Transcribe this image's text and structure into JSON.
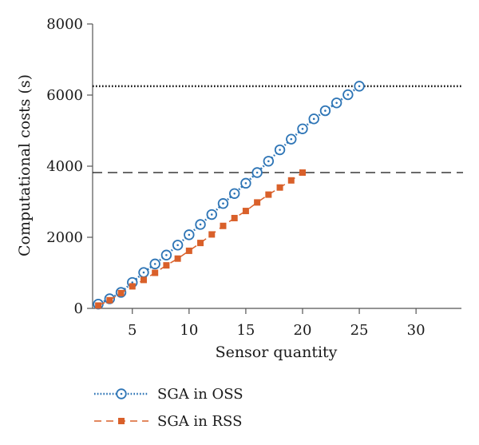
{
  "chart_data": {
    "type": "line",
    "xlabel": "Sensor quantity",
    "ylabel": "Computational costs (s)",
    "xlim": [
      1.5,
      34
    ],
    "ylim": [
      0,
      8000
    ],
    "xticks": [
      5,
      10,
      15,
      20,
      25,
      30
    ],
    "yticks": [
      0,
      2000,
      4000,
      6000,
      8000
    ],
    "x_tick_labels": [
      "5",
      "10",
      "15",
      "20",
      "25",
      "30"
    ],
    "y_tick_labels": [
      "0",
      "2000",
      "4000",
      "6000",
      "8000"
    ],
    "grid": false,
    "legend_position": "bottom-left",
    "reference_lines": [
      {
        "series": "SGA in OSS",
        "y": 6250,
        "style": "dotted"
      },
      {
        "series": "SGA in RSS",
        "y": 3820,
        "style": "dashed"
      }
    ],
    "series": [
      {
        "name": "SGA in OSS",
        "color": "#2e75b6",
        "line_style": "dotted",
        "marker": "circle-dot",
        "x": [
          2,
          3,
          4,
          5,
          6,
          7,
          8,
          9,
          10,
          11,
          12,
          13,
          14,
          15,
          16,
          17,
          18,
          19,
          20,
          21,
          22,
          23,
          24,
          25
        ],
        "values": [
          120,
          270,
          450,
          730,
          1010,
          1250,
          1500,
          1780,
          2070,
          2360,
          2640,
          2950,
          3230,
          3520,
          3820,
          4140,
          4460,
          4760,
          5050,
          5330,
          5560,
          5780,
          6010,
          6250
        ]
      },
      {
        "name": "SGA in RSS",
        "color": "#d9602a",
        "line_style": "dashed",
        "marker": "square",
        "x": [
          2,
          3,
          4,
          5,
          6,
          7,
          8,
          9,
          10,
          11,
          12,
          13,
          14,
          15,
          16,
          17,
          18,
          19,
          20
        ],
        "values": [
          80,
          230,
          430,
          620,
          800,
          1000,
          1210,
          1400,
          1620,
          1840,
          2080,
          2320,
          2540,
          2740,
          2980,
          3200,
          3400,
          3600,
          3820
        ]
      }
    ]
  }
}
